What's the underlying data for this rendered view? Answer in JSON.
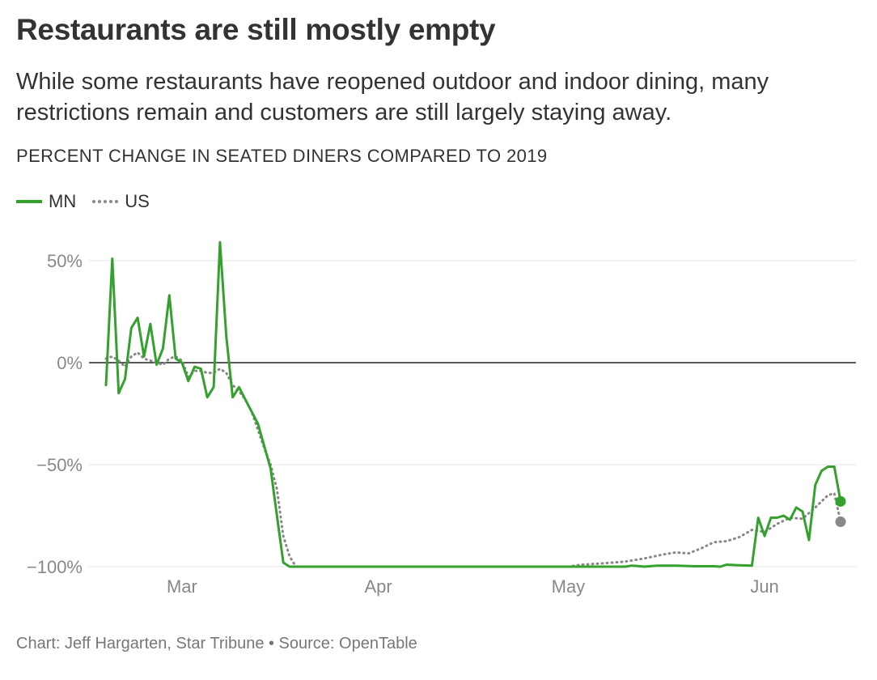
{
  "title": "Restaurants are still mostly empty",
  "subtitle": "While some restaurants have reopened outdoor and indoor dining, many restrictions remain and customers are still largely staying away.",
  "unit_label": "PERCENT CHANGE IN SEATED DINERS COMPARED TO 2019",
  "legend": {
    "mn": "MN",
    "us": "US"
  },
  "footer": "Chart: Jeff Hargarten, Star Tribune • Source: OpenTable",
  "colors": {
    "mn": "#34a12e",
    "us": "#888888",
    "grid": "#e3e3e3",
    "zero_line": "#222222"
  },
  "chart_data": {
    "type": "line",
    "title": "Restaurants are still mostly empty",
    "ylabel": "PERCENT CHANGE IN SEATED DINERS COMPARED TO 2019",
    "x_unit": "date (2020)",
    "xlim": [
      "2020-02-18",
      "2020-06-13"
    ],
    "ylim": [
      -100,
      60
    ],
    "y_ticks": [
      50,
      0,
      -50,
      -100
    ],
    "y_tick_labels": [
      "50%",
      "0%",
      "−50%",
      "−100%"
    ],
    "x_ticks": [
      "2020-03-01",
      "2020-04-01",
      "2020-05-01",
      "2020-06-01"
    ],
    "x_tick_labels": [
      "Mar",
      "Apr",
      "May",
      "Jun"
    ],
    "grid": true,
    "legend_position": "top-left",
    "series": [
      {
        "name": "MN",
        "color": "#34a12e",
        "style": "solid",
        "end_marker": true,
        "points": [
          [
            "2020-02-18",
            -11
          ],
          [
            "2020-02-19",
            51
          ],
          [
            "2020-02-20",
            -15
          ],
          [
            "2020-02-21",
            -8
          ],
          [
            "2020-02-22",
            17
          ],
          [
            "2020-02-23",
            22
          ],
          [
            "2020-02-24",
            3
          ],
          [
            "2020-02-25",
            19
          ],
          [
            "2020-02-26",
            -1
          ],
          [
            "2020-02-27",
            7
          ],
          [
            "2020-02-28",
            33
          ],
          [
            "2020-02-29",
            2
          ],
          [
            "2020-03-01",
            0
          ],
          [
            "2020-03-02",
            -9
          ],
          [
            "2020-03-03",
            -2
          ],
          [
            "2020-03-04",
            -3
          ],
          [
            "2020-03-05",
            -17
          ],
          [
            "2020-03-06",
            -12
          ],
          [
            "2020-03-07",
            59
          ],
          [
            "2020-03-08",
            13
          ],
          [
            "2020-03-09",
            -17
          ],
          [
            "2020-03-10",
            -12
          ],
          [
            "2020-03-11",
            -18
          ],
          [
            "2020-03-12",
            -24
          ],
          [
            "2020-03-13",
            -30
          ],
          [
            "2020-03-14",
            -41
          ],
          [
            "2020-03-15",
            -52
          ],
          [
            "2020-03-16",
            -75
          ],
          [
            "2020-03-17",
            -98
          ],
          [
            "2020-03-18",
            -100
          ],
          [
            "2020-03-22",
            -100
          ],
          [
            "2020-04-01",
            -100
          ],
          [
            "2020-04-15",
            -100
          ],
          [
            "2020-05-01",
            -100
          ],
          [
            "2020-05-10",
            -100
          ],
          [
            "2020-05-11",
            -99.5
          ],
          [
            "2020-05-12",
            -99.7
          ],
          [
            "2020-05-13",
            -100
          ],
          [
            "2020-05-15",
            -99.5
          ],
          [
            "2020-05-18",
            -99.5
          ],
          [
            "2020-05-21",
            -99.8
          ],
          [
            "2020-05-24",
            -99.8
          ],
          [
            "2020-05-25",
            -100
          ],
          [
            "2020-05-26",
            -99
          ],
          [
            "2020-05-28",
            -99.3
          ],
          [
            "2020-05-30",
            -99.5
          ],
          [
            "2020-05-31",
            -76
          ],
          [
            "2020-06-01",
            -85
          ],
          [
            "2020-06-02",
            -76
          ],
          [
            "2020-06-03",
            -76
          ],
          [
            "2020-06-04",
            -75
          ],
          [
            "2020-06-05",
            -77
          ],
          [
            "2020-06-06",
            -71
          ],
          [
            "2020-06-07",
            -73
          ],
          [
            "2020-06-08",
            -87
          ],
          [
            "2020-06-09",
            -60
          ],
          [
            "2020-06-10",
            -53
          ],
          [
            "2020-06-11",
            -51
          ],
          [
            "2020-06-12",
            -51
          ],
          [
            "2020-06-13",
            -68
          ]
        ]
      },
      {
        "name": "US",
        "color": "#888888",
        "style": "dotted",
        "end_marker": true,
        "points": [
          [
            "2020-02-18",
            2
          ],
          [
            "2020-02-19",
            3
          ],
          [
            "2020-02-20",
            1
          ],
          [
            "2020-02-21",
            -2
          ],
          [
            "2020-02-22",
            3
          ],
          [
            "2020-02-23",
            5
          ],
          [
            "2020-02-24",
            2
          ],
          [
            "2020-02-25",
            1
          ],
          [
            "2020-02-26",
            0
          ],
          [
            "2020-02-27",
            -1
          ],
          [
            "2020-02-28",
            2
          ],
          [
            "2020-02-29",
            3
          ],
          [
            "2020-03-01",
            1
          ],
          [
            "2020-03-02",
            -7
          ],
          [
            "2020-03-03",
            -4
          ],
          [
            "2020-03-04",
            -4
          ],
          [
            "2020-03-05",
            -5
          ],
          [
            "2020-03-06",
            -5
          ],
          [
            "2020-03-07",
            -3
          ],
          [
            "2020-03-08",
            -5
          ],
          [
            "2020-03-09",
            -11
          ],
          [
            "2020-03-10",
            -14
          ],
          [
            "2020-03-11",
            -18
          ],
          [
            "2020-03-12",
            -24
          ],
          [
            "2020-03-13",
            -33
          ],
          [
            "2020-03-14",
            -42
          ],
          [
            "2020-03-15",
            -50
          ],
          [
            "2020-03-16",
            -62
          ],
          [
            "2020-03-17",
            -85
          ],
          [
            "2020-03-18",
            -95
          ],
          [
            "2020-03-19",
            -100
          ],
          [
            "2020-04-01",
            -100
          ],
          [
            "2020-04-15",
            -100
          ],
          [
            "2020-05-01",
            -100
          ],
          [
            "2020-05-03",
            -99
          ],
          [
            "2020-05-06",
            -98.5
          ],
          [
            "2020-05-10",
            -97.5
          ],
          [
            "2020-05-13",
            -96
          ],
          [
            "2020-05-16",
            -94
          ],
          [
            "2020-05-18",
            -93
          ],
          [
            "2020-05-20",
            -93.5
          ],
          [
            "2020-05-22",
            -91
          ],
          [
            "2020-05-24",
            -88
          ],
          [
            "2020-05-26",
            -87.5
          ],
          [
            "2020-05-28",
            -85.5
          ],
          [
            "2020-05-30",
            -82
          ],
          [
            "2020-06-01",
            -83
          ],
          [
            "2020-06-03",
            -79
          ],
          [
            "2020-06-05",
            -76
          ],
          [
            "2020-06-07",
            -76.5
          ],
          [
            "2020-06-09",
            -71
          ],
          [
            "2020-06-11",
            -65
          ],
          [
            "2020-06-12",
            -64
          ],
          [
            "2020-06-13",
            -78
          ]
        ]
      }
    ]
  }
}
